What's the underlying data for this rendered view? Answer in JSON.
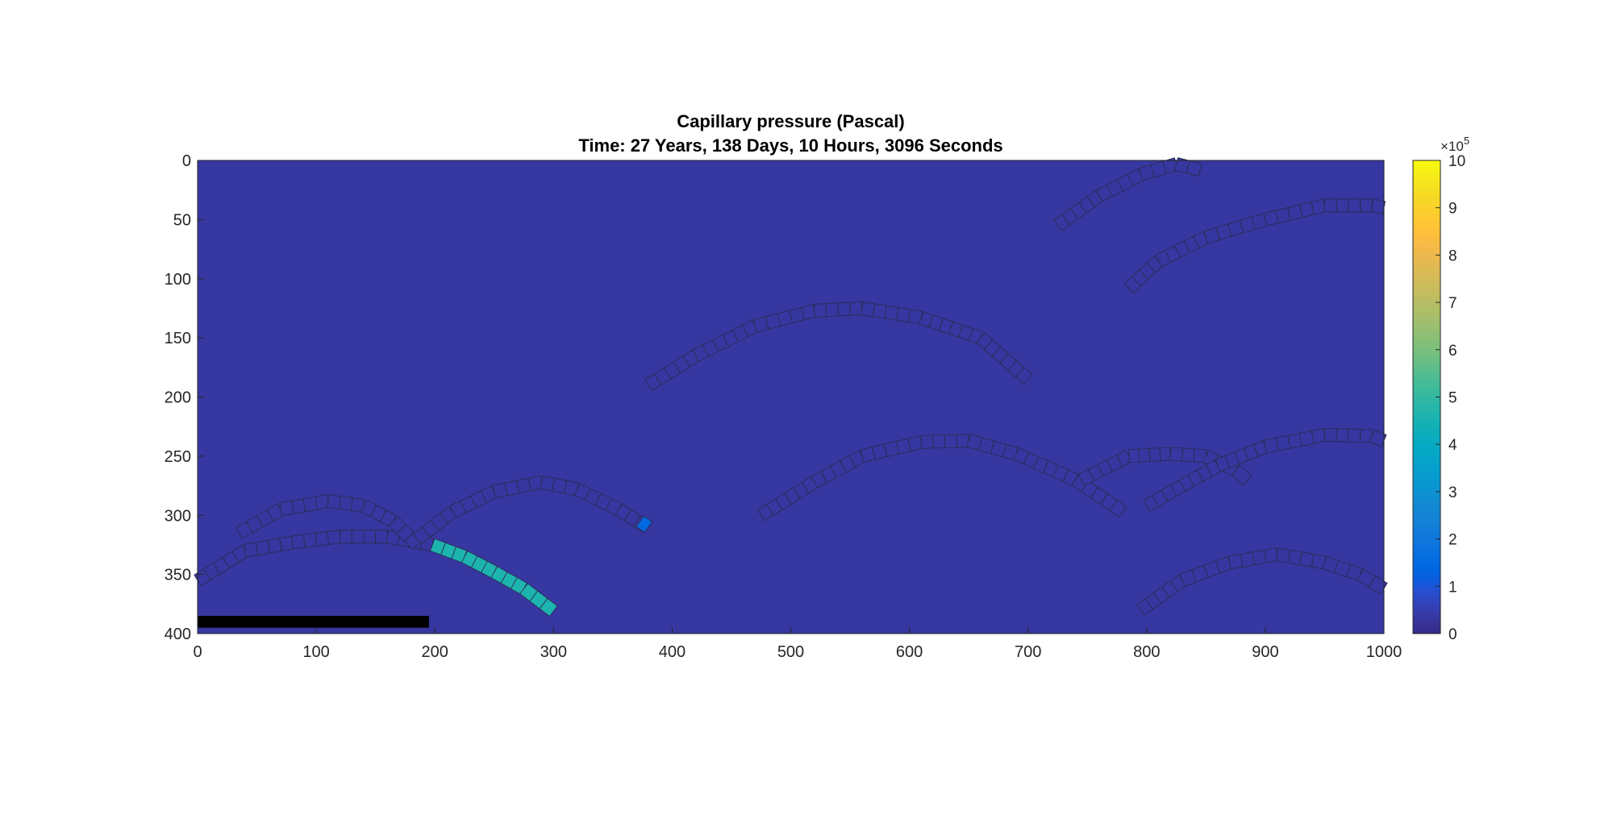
{
  "chart_data": {
    "type": "heatmap",
    "title": "Capillary pressure (Pascal)",
    "subtitle": "Time: 27 Years, 138 Days, 10 Hours, 3096 Seconds",
    "xlabel": "",
    "ylabel": "",
    "xlim": [
      0,
      1000
    ],
    "ylim": [
      0,
      400
    ],
    "y_direction": "reverse",
    "xticks": [
      "0",
      "100",
      "200",
      "300",
      "400",
      "500",
      "600",
      "700",
      "800",
      "900",
      "1000"
    ],
    "yticks": [
      "0",
      "50",
      "100",
      "150",
      "200",
      "250",
      "300",
      "350",
      "400"
    ],
    "grid": false,
    "background_value": 0.3,
    "colorbar": {
      "range": [
        0,
        10
      ],
      "exponent_label": "×10",
      "exponent": "5",
      "ticks": [
        "0",
        "1",
        "2",
        "3",
        "4",
        "5",
        "6",
        "7",
        "8",
        "9",
        "10"
      ],
      "colormap": "parula"
    },
    "fractures": [
      {
        "points": [
          [
            0,
            355
          ],
          [
            40,
            330
          ],
          [
            80,
            323
          ],
          [
            120,
            318
          ],
          [
            160,
            318
          ],
          [
            198,
            325
          ]
        ],
        "value": 0.3
      },
      {
        "points": [
          [
            35,
            315
          ],
          [
            70,
            295
          ],
          [
            110,
            288
          ],
          [
            140,
            292
          ],
          [
            165,
            305
          ],
          [
            185,
            325
          ]
        ],
        "value": 0.3
      },
      {
        "points": [
          [
            185,
            320
          ],
          [
            215,
            297
          ],
          [
            250,
            280
          ],
          [
            290,
            272
          ],
          [
            320,
            278
          ],
          [
            355,
            295
          ],
          [
            378,
            310
          ]
        ],
        "value": 0.3
      },
      {
        "points": [
          [
            373,
            305
          ],
          [
            380,
            310
          ]
        ],
        "value": 1.4
      },
      {
        "points": [
          [
            198,
            325
          ],
          [
            225,
            335
          ],
          [
            250,
            348
          ],
          [
            275,
            362
          ],
          [
            300,
            381
          ]
        ],
        "value": 4.6
      },
      {
        "points": [
          [
            380,
            190
          ],
          [
            420,
            165
          ],
          [
            470,
            140
          ],
          [
            520,
            127
          ],
          [
            560,
            125
          ],
          [
            610,
            133
          ],
          [
            660,
            150
          ],
          [
            700,
            185
          ]
        ],
        "value": 0.3
      },
      {
        "points": [
          [
            475,
            300
          ],
          [
            520,
            272
          ],
          [
            560,
            250
          ],
          [
            610,
            238
          ],
          [
            650,
            237
          ],
          [
            690,
            248
          ],
          [
            740,
            270
          ],
          [
            780,
            297
          ]
        ],
        "value": 0.3
      },
      {
        "points": [
          [
            745,
            270
          ],
          [
            785,
            250
          ],
          [
            820,
            248
          ],
          [
            850,
            250
          ],
          [
            875,
            262
          ],
          [
            885,
            270
          ]
        ],
        "value": 0.3
      },
      {
        "points": [
          [
            800,
            292
          ],
          [
            830,
            275
          ],
          [
            860,
            258
          ],
          [
            900,
            242
          ],
          [
            950,
            232
          ],
          [
            990,
            233
          ],
          [
            1000,
            237
          ]
        ],
        "value": 0.3
      },
      {
        "points": [
          [
            795,
            380
          ],
          [
            830,
            355
          ],
          [
            870,
            340
          ],
          [
            910,
            333
          ],
          [
            950,
            340
          ],
          [
            980,
            350
          ],
          [
            1000,
            362
          ]
        ],
        "value": 0.3
      },
      {
        "points": [
          [
            725,
            55
          ],
          [
            760,
            30
          ],
          [
            795,
            12
          ],
          [
            825,
            3
          ],
          [
            845,
            8
          ]
        ],
        "value": 0.3
      },
      {
        "points": [
          [
            785,
            108
          ],
          [
            810,
            85
          ],
          [
            850,
            65
          ],
          [
            900,
            50
          ],
          [
            950,
            38
          ],
          [
            990,
            38
          ],
          [
            1000,
            40
          ]
        ],
        "value": 0.3
      }
    ],
    "well": {
      "x": [
        0,
        195
      ],
      "y": [
        385,
        395
      ],
      "color": "#000000"
    }
  }
}
